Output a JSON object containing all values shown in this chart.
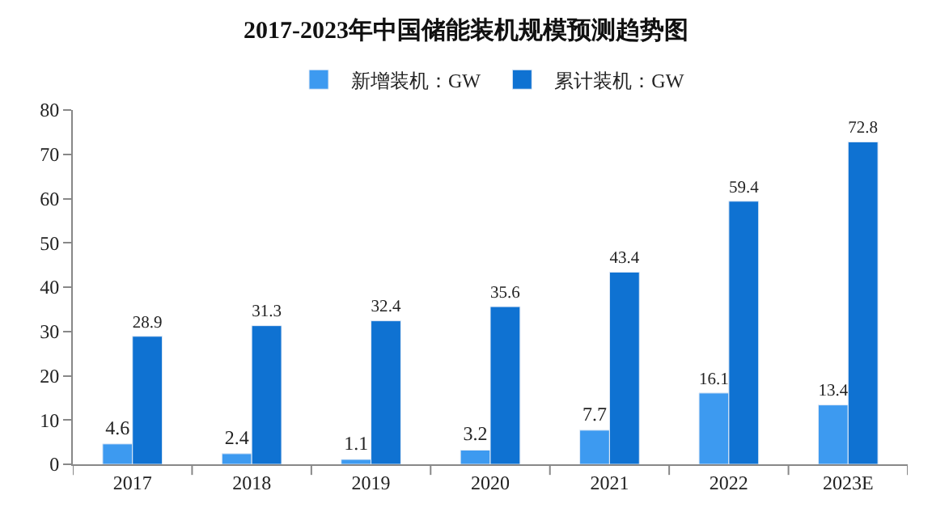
{
  "chart_data": {
    "type": "bar",
    "title": "2017-2023年中国储能装机规模预测趋势图",
    "categories": [
      "2017",
      "2018",
      "2019",
      "2020",
      "2021",
      "2022",
      "2023E"
    ],
    "series": [
      {
        "name": "新增装机：GW",
        "color": "#3d9af0",
        "values": [
          4.6,
          2.4,
          1.1,
          3.2,
          7.7,
          16.1,
          13.4
        ]
      },
      {
        "name": "累计装机：GW",
        "color": "#0f72d2",
        "values": [
          28.9,
          31.3,
          32.4,
          35.6,
          43.4,
          59.4,
          72.8
        ]
      }
    ],
    "ylim": [
      0,
      80
    ],
    "yticks": [
      0,
      10,
      20,
      30,
      40,
      50,
      60,
      70,
      80
    ],
    "data_labels": true,
    "legend": "top"
  }
}
